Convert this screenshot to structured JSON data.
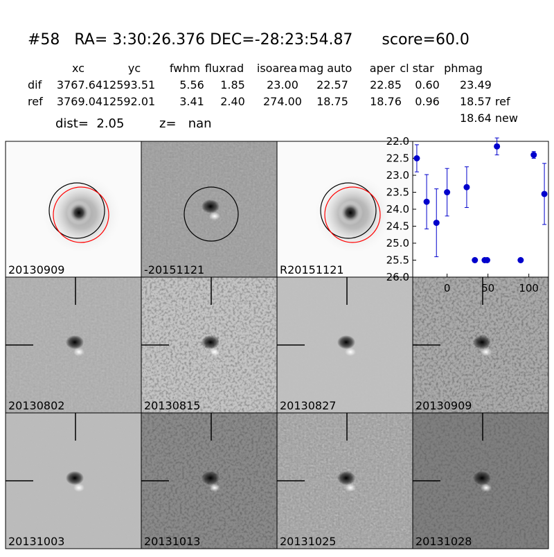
{
  "title": "#58   RA= 3:30:26.376 DEC=-28:23:54.87      score=60.0",
  "table": {
    "columns": [
      "xc",
      "yc",
      "fwhm",
      "fluxrad",
      "isoarea",
      "mag auto",
      "aper",
      "cl star",
      "phmag"
    ],
    "rows": [
      [
        "dif",
        "3767.64",
        "12593.51",
        "5.56",
        "1.85",
        "23.00",
        "22.57",
        "22.85",
        "0.60",
        "23.49"
      ],
      [
        "ref",
        "3769.04",
        "12592.01",
        "3.41",
        "2.40",
        "274.00",
        "18.75",
        "18.76",
        "0.96",
        "18.57 ref"
      ]
    ],
    "extra": "18.64 new"
  },
  "dist": "dist=  2.05",
  "z": "z=   nan",
  "panels": [
    {
      "label": "20130909"
    },
    {
      "label": "-20151121"
    },
    {
      "label": "R20151121"
    },
    {
      "label": "20130802"
    },
    {
      "label": "20130815"
    },
    {
      "label": "20130827"
    },
    {
      "label": "20130909",
      "color": "#ff0000"
    },
    {
      "label": "20131003"
    },
    {
      "label": "20131013"
    },
    {
      "label": "20131025"
    },
    {
      "label": "20131028"
    }
  ],
  "lightcurve": {
    "type": "scatter",
    "color": "#0000cc",
    "x": [
      -37,
      -25,
      -13,
      0,
      24,
      34,
      46,
      49,
      61,
      90,
      106,
      119
    ],
    "y": [
      22.5,
      23.78,
      24.4,
      23.5,
      23.35,
      25.5,
      25.5,
      25.5,
      22.15,
      25.5,
      22.4,
      23.55
    ],
    "err": [
      0.4,
      0.8,
      1.0,
      0.7,
      0.6,
      0.05,
      0.05,
      0.05,
      0.25,
      0.05,
      0.1,
      0.9
    ],
    "xlim": [
      -42,
      124
    ],
    "ylim": [
      26.0,
      22.0
    ],
    "xticks": [
      0,
      50,
      100
    ],
    "yticks": [
      {
        "value": 22.0,
        "label": "22.0"
      },
      {
        "value": 22.5,
        "label": "22.5"
      },
      {
        "value": 23.0,
        "label": "23.0"
      },
      {
        "value": 23.5,
        "label": "23.5"
      },
      {
        "value": 24.0,
        "label": "24.0"
      },
      {
        "value": 24.5,
        "label": "24.5"
      },
      {
        "value": 25.0,
        "label": "25.0"
      },
      {
        "value": 25.5,
        "label": "25.5"
      },
      {
        "value": 26.0,
        "label": "26.0"
      }
    ]
  }
}
